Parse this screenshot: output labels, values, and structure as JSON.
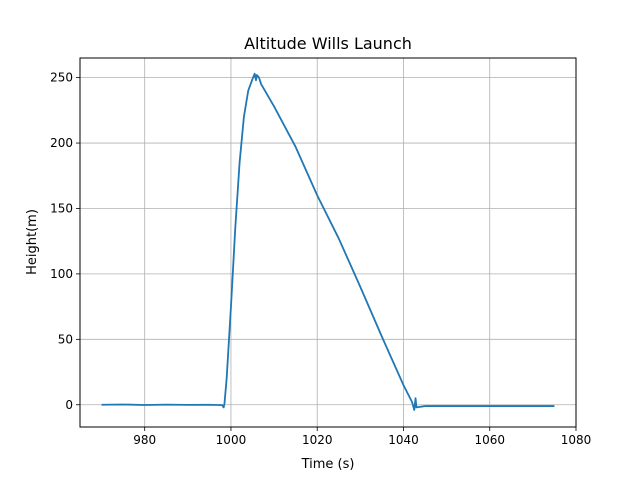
{
  "chart_data": {
    "type": "line",
    "title": "Altitude Wills Launch",
    "xlabel": "Time (s)",
    "ylabel": "Height(m)",
    "xlim": [
      965,
      1080
    ],
    "ylim": [
      -17,
      265
    ],
    "grid": true,
    "x_ticks": [
      980,
      1000,
      1020,
      1040,
      1060,
      1080
    ],
    "y_ticks": [
      0,
      50,
      100,
      150,
      200,
      250
    ],
    "series": [
      {
        "color": "#1f77b4",
        "points": [
          [
            970,
            0
          ],
          [
            975,
            0.2
          ],
          [
            980,
            -0.2
          ],
          [
            985,
            0.1
          ],
          [
            990,
            -0.1
          ],
          [
            995,
            0
          ],
          [
            998,
            -0.3
          ],
          [
            998.3,
            -2
          ],
          [
            998.5,
            1
          ],
          [
            999,
            20
          ],
          [
            1000,
            75
          ],
          [
            1001,
            135
          ],
          [
            1002,
            185
          ],
          [
            1003,
            220
          ],
          [
            1004,
            240
          ],
          [
            1005,
            249
          ],
          [
            1005.5,
            253
          ],
          [
            1005.8,
            248
          ],
          [
            1006,
            252
          ],
          [
            1006.5,
            250
          ],
          [
            1007,
            245
          ],
          [
            1010,
            228
          ],
          [
            1015,
            197
          ],
          [
            1020,
            160
          ],
          [
            1025,
            127
          ],
          [
            1030,
            90
          ],
          [
            1035,
            52
          ],
          [
            1040,
            15
          ],
          [
            1042,
            2
          ],
          [
            1042.5,
            -4
          ],
          [
            1042.8,
            5
          ],
          [
            1043,
            -2
          ],
          [
            1045,
            -1
          ],
          [
            1050,
            -1
          ],
          [
            1055,
            -1
          ],
          [
            1060,
            -1
          ],
          [
            1065,
            -1
          ],
          [
            1070,
            -1
          ],
          [
            1075,
            -1
          ]
        ]
      }
    ]
  }
}
